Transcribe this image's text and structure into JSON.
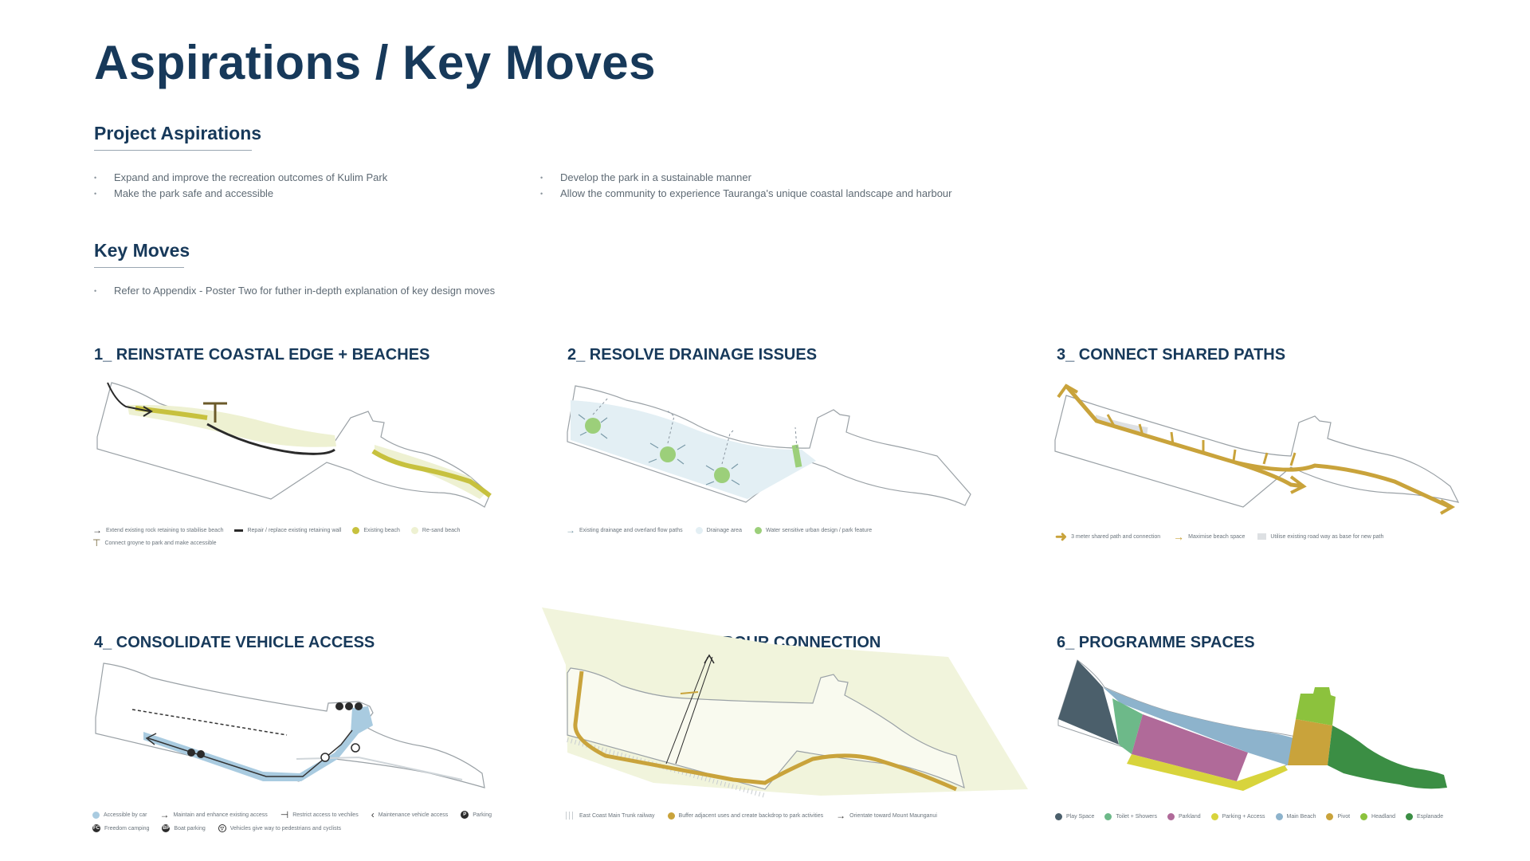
{
  "header": {
    "title": "Aspirations / Key Moves"
  },
  "aspirations": {
    "heading": "Project Aspirations",
    "col1": [
      "Expand and improve the recreation outcomes of Kulim Park",
      "Make the park safe and accessible"
    ],
    "col2": [
      "Develop the park in a sustainable manner",
      "Allow the community to experience Tauranga's unique coastal landscape and harbour"
    ]
  },
  "key_moves": {
    "heading": "Key Moves",
    "items": [
      "Refer to Appendix - Poster Two for futher in-depth explanation of key design moves"
    ]
  },
  "panels": [
    {
      "title": "1_ REINSTATE COASTAL EDGE + BEACHES",
      "legend": [
        "Extend existing rock retaining to stabilise beach",
        "Repair / replace existing retaining wall",
        "Existing beach",
        "Re-sand beach",
        "Connect groyne to park and make accessible"
      ]
    },
    {
      "title": "2_ RESOLVE DRAINAGE ISSUES",
      "legend": [
        "Existing drainage and overland flow paths",
        "Drainage area",
        "Water sensitive urban design / park feature"
      ]
    },
    {
      "title": "3_ CONNECT SHARED PATHS",
      "legend": [
        "3 meter shared path and connection",
        "Maximise beach space",
        "Utilise existing road way as base for new path"
      ]
    },
    {
      "title": "4_ CONSOLIDATE VEHICLE ACCESS",
      "legend": [
        "Accessible by car",
        "Maintain and enhance existing access",
        "Restrict access to vechiles",
        "Maintenance vehicle access",
        "Parking",
        "Freedom camping",
        "Boat parking",
        "Vehicles give way to pedestrians and cyclists"
      ]
    },
    {
      "title": "5_ REINFORCE HARBOUR CONNECTION",
      "legend": [
        "East Coast Main Trunk railway",
        "Buffer adjacent uses and create backdrop to park activities",
        "Orientate toward Mount Maunganui"
      ]
    },
    {
      "title": "6_ PROGRAMME SPACES",
      "legend": [
        "Play Space",
        "Toilet + Showers",
        "Parkland",
        "Parking + Access",
        "Main Beach",
        "Pivot",
        "Headland",
        "Esplanade"
      ]
    }
  ],
  "symbols": {
    "parking": "P",
    "camping": "FC",
    "boat": "BP",
    "give_way": "▽"
  },
  "colors": {
    "title": "#17395a",
    "gold": "#c9a33b",
    "beach": "#c7c13e",
    "resand": "#eef1d2",
    "drainage": "#e3eff4",
    "wsud": "#9ccf7a",
    "car": "#a9cbe0",
    "harbour_buffer": "#f1f4dc",
    "play": "#4b5f6b",
    "toilet": "#6db989",
    "parkland": "#b06a99",
    "parking_access": "#d8d43c",
    "main_beach": "#8db3cc",
    "pivot": "#c9a33b",
    "headland": "#8cc23d",
    "esplanade": "#3b8e44"
  }
}
